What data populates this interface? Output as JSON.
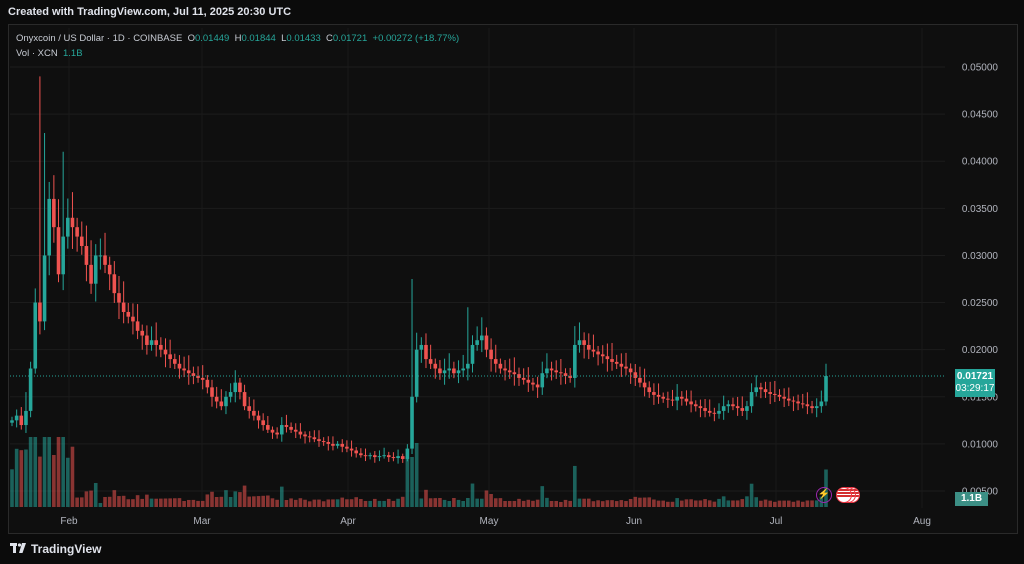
{
  "header": {
    "title": "Created with TradingView.com, Jul 11, 2025 20:30 UTC"
  },
  "legend": {
    "symbol": "Onyxcoin / US Dollar · 1D · COINBASE",
    "o_label": "O",
    "o_value": "0.01449",
    "h_label": "H",
    "h_value": "0.01844",
    "l_label": "L",
    "l_value": "0.01433",
    "c_label": "C",
    "c_value": "0.01721",
    "change": "+0.00272 (+18.77%)"
  },
  "volume_legend": {
    "label": "Vol · XCN",
    "value": "1.1B"
  },
  "price_tag": {
    "price": "0.01721",
    "countdown": "03:29:17"
  },
  "volume_tag": {
    "value": "1.1B"
  },
  "footer": {
    "brand": "TradingView"
  },
  "colors": {
    "up": "#26a69a",
    "down": "#ef5350",
    "background": "#0f0f0f"
  },
  "icons": [
    "lightning-event-icon",
    "us-flag-event-icon"
  ],
  "chart_data": {
    "type": "candlestick",
    "y_ticks": [
      "0.05000",
      "0.04500",
      "0.04000",
      "0.03500",
      "0.03000",
      "0.02500",
      "0.02000",
      "0.01500",
      "0.01000",
      "0.00500"
    ],
    "x_ticks": [
      "Feb",
      "Mar",
      "Apr",
      "May",
      "Jun",
      "Jul",
      "Aug"
    ],
    "y_range": [
      0.0035,
      0.0535
    ],
    "last_price": 0.01721,
    "closes_approx": [
      0.0125,
      0.013,
      0.012,
      0.0135,
      0.018,
      0.025,
      0.023,
      0.03,
      0.036,
      0.033,
      0.028,
      0.032,
      0.034,
      0.033,
      0.032,
      0.031,
      0.029,
      0.027,
      0.03,
      0.03,
      0.029,
      0.028,
      0.026,
      0.025,
      0.024,
      0.0235,
      0.023,
      0.022,
      0.0215,
      0.0205,
      0.021,
      0.0205,
      0.02,
      0.0195,
      0.019,
      0.0185,
      0.018,
      0.0178,
      0.0175,
      0.0172,
      0.017,
      0.0168,
      0.016,
      0.015,
      0.0145,
      0.014,
      0.015,
      0.0155,
      0.0165,
      0.0155,
      0.014,
      0.0135,
      0.013,
      0.0125,
      0.012,
      0.0115,
      0.0112,
      0.011,
      0.012,
      0.0118,
      0.0115,
      0.0113,
      0.011,
      0.0108,
      0.0107,
      0.0105,
      0.0103,
      0.0102,
      0.01,
      0.0098,
      0.01,
      0.0097,
      0.0095,
      0.0093,
      0.009,
      0.0088,
      0.0087,
      0.0088,
      0.0086,
      0.0087,
      0.0088,
      0.0086,
      0.0085,
      0.0087,
      0.0084,
      0.0095,
      0.015,
      0.02,
      0.0205,
      0.019,
      0.0185,
      0.018,
      0.0175,
      0.0178,
      0.018,
      0.0175,
      0.0178,
      0.018,
      0.0185,
      0.0205,
      0.021,
      0.0215,
      0.02,
      0.019,
      0.0185,
      0.018,
      0.0178,
      0.0176,
      0.0174,
      0.017,
      0.0168,
      0.0165,
      0.0163,
      0.016,
      0.0175,
      0.018,
      0.0178,
      0.0176,
      0.0175,
      0.0172,
      0.017,
      0.0205,
      0.021,
      0.0205,
      0.02,
      0.0198,
      0.0195,
      0.0193,
      0.019,
      0.0187,
      0.0185,
      0.0182,
      0.018,
      0.0176,
      0.017,
      0.0165,
      0.016,
      0.0155,
      0.0152,
      0.015,
      0.0148,
      0.0147,
      0.0146,
      0.015,
      0.0148,
      0.0145,
      0.0142,
      0.014,
      0.0138,
      0.0135,
      0.0133,
      0.0132,
      0.0135,
      0.014,
      0.0142,
      0.014,
      0.0138,
      0.0135,
      0.014,
      0.0155,
      0.016,
      0.0158,
      0.0155,
      0.0153,
      0.0152,
      0.015,
      0.0148,
      0.0146,
      0.0145,
      0.0143,
      0.0142,
      0.014,
      0.0138,
      0.014,
      0.0145,
      0.0172
    ]
  }
}
